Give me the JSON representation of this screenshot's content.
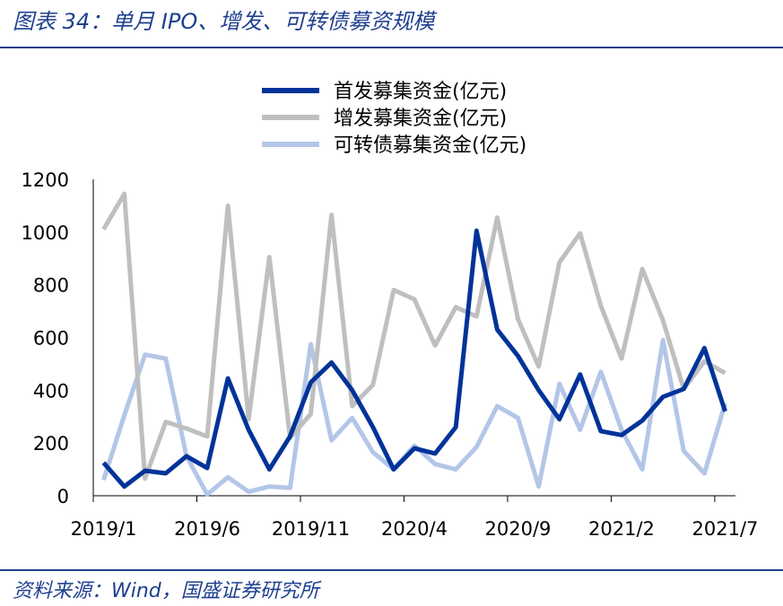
{
  "header": {
    "title": "图表 34：单月 IPO、增发、可转债募资规模"
  },
  "footer": {
    "source": "资料来源：Wind，国盛证券研究所"
  },
  "chart_data": {
    "type": "line",
    "title": "",
    "xlabel": "",
    "ylabel": "",
    "ylim": [
      0,
      1200
    ],
    "yticks": [
      "0",
      "200",
      "400",
      "600",
      "800",
      "1000",
      "1200"
    ],
    "xticks": [
      "2019/1",
      "2019/6",
      "2019/11",
      "2020/4",
      "2020/9",
      "2021/2",
      "2021/7"
    ],
    "grid": false,
    "legend_position": "top",
    "categories": [
      "2019/1",
      "2019/2",
      "2019/3",
      "2019/4",
      "2019/5",
      "2019/6",
      "2019/7",
      "2019/8",
      "2019/9",
      "2019/10",
      "2019/11",
      "2019/12",
      "2020/1",
      "2020/2",
      "2020/3",
      "2020/4",
      "2020/5",
      "2020/6",
      "2020/7",
      "2020/8",
      "2020/9",
      "2020/10",
      "2020/11",
      "2020/12",
      "2021/1",
      "2021/2",
      "2021/3",
      "2021/4",
      "2021/5",
      "2021/6",
      "2021/7"
    ],
    "series": [
      {
        "name": "首发募集资金(亿元)",
        "color": "#003399",
        "width": 5,
        "values": [
          125,
          35,
          95,
          85,
          150,
          105,
          445,
          250,
          100,
          225,
          430,
          505,
          400,
          260,
          100,
          180,
          160,
          260,
          1005,
          630,
          530,
          400,
          290,
          460,
          245,
          230,
          285,
          375,
          405,
          560,
          320
        ]
      },
      {
        "name": "增发募集资金(亿元)",
        "color": "#bfbfbf",
        "width": 5,
        "values": [
          1010,
          1145,
          65,
          280,
          255,
          225,
          1100,
          290,
          905,
          220,
          310,
          1065,
          340,
          420,
          780,
          745,
          570,
          715,
          680,
          1055,
          670,
          490,
          885,
          995,
          720,
          520,
          860,
          665,
          405,
          510,
          465
        ]
      },
      {
        "name": "可转债募集资金(亿元)",
        "color": "#b4c6e7",
        "width": 5,
        "values": [
          60,
          305,
          535,
          520,
          150,
          5,
          70,
          15,
          35,
          30,
          575,
          210,
          295,
          165,
          100,
          190,
          120,
          100,
          185,
          340,
          295,
          35,
          425,
          250,
          470,
          250,
          100,
          590,
          170,
          85,
          350
        ]
      }
    ]
  }
}
